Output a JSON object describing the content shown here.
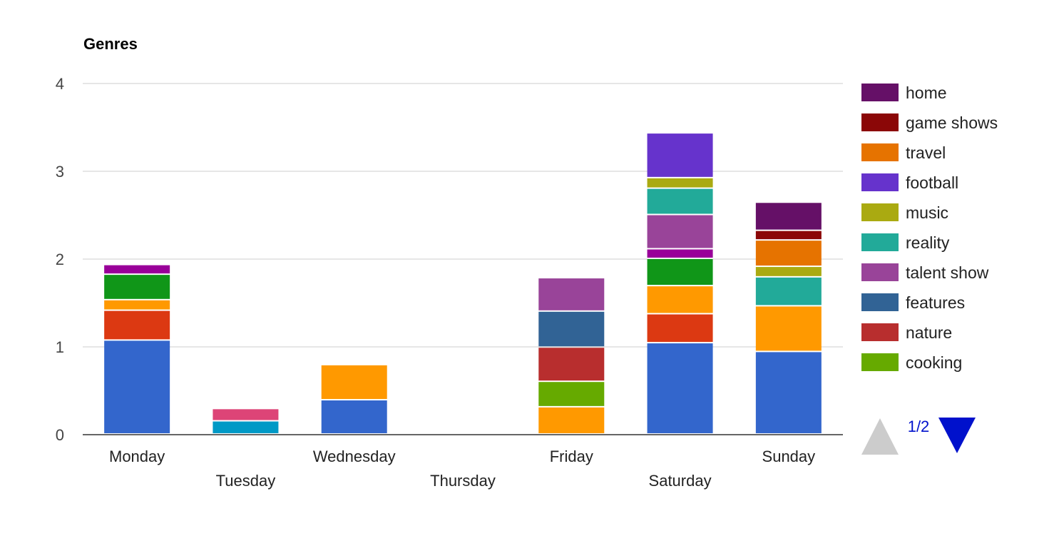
{
  "chart_data": {
    "type": "bar",
    "stacked": true,
    "title": "Genres",
    "categories": [
      "Monday",
      "Tuesday",
      "Wednesday",
      "Thursday",
      "Friday",
      "Saturday",
      "Sunday"
    ],
    "ylim": [
      0,
      4
    ],
    "yticks": [
      0,
      1,
      2,
      3,
      4
    ],
    "grid": true,
    "legend_position": "right",
    "series": [
      {
        "name": "",
        "color": "#3366cc",
        "values": [
          1.07,
          0,
          0.39,
          0,
          0,
          1.04,
          0.94
        ]
      },
      {
        "name": "",
        "color": "#dc3912",
        "values": [
          0.34,
          0,
          0,
          0,
          0,
          0.33,
          0
        ]
      },
      {
        "name": "",
        "color": "#ff9900",
        "values": [
          0.12,
          0,
          0.4,
          0,
          0.31,
          0.32,
          0.52
        ]
      },
      {
        "name": "",
        "color": "#109618",
        "values": [
          0.29,
          0,
          0,
          0,
          0,
          0.31,
          0
        ]
      },
      {
        "name": "",
        "color": "#990099",
        "values": [
          0.11,
          0,
          0,
          0,
          0,
          0.11,
          0
        ]
      },
      {
        "name": "",
        "color": "#0099c6",
        "values": [
          0,
          0.15,
          0,
          0,
          0,
          0,
          0
        ]
      },
      {
        "name": "",
        "color": "#dd4477",
        "values": [
          0,
          0.14,
          0,
          0,
          0,
          0,
          0
        ]
      },
      {
        "name": "cooking",
        "color": "#66aa00",
        "values": [
          0,
          0,
          0,
          0,
          0.29,
          0,
          0
        ]
      },
      {
        "name": "nature",
        "color": "#b82e2e",
        "values": [
          0,
          0,
          0,
          0,
          0.39,
          0,
          0
        ]
      },
      {
        "name": "features",
        "color": "#316395",
        "values": [
          0,
          0,
          0,
          0,
          0.41,
          0,
          0
        ]
      },
      {
        "name": "talent show",
        "color": "#994499",
        "values": [
          0,
          0,
          0,
          0,
          0.38,
          0.39,
          0
        ]
      },
      {
        "name": "reality",
        "color": "#22aa99",
        "values": [
          0,
          0,
          0,
          0,
          0,
          0.3,
          0.33
        ]
      },
      {
        "name": "music",
        "color": "#aaaa11",
        "values": [
          0,
          0,
          0,
          0,
          0,
          0.12,
          0.12
        ]
      },
      {
        "name": "football",
        "color": "#6633cc",
        "values": [
          0,
          0,
          0,
          0,
          0,
          0.51,
          0
        ]
      },
      {
        "name": "travel",
        "color": "#e67300",
        "values": [
          0,
          0,
          0,
          0,
          0,
          0,
          0.3
        ]
      },
      {
        "name": "game shows",
        "color": "#8b0707",
        "values": [
          0,
          0,
          0,
          0,
          0,
          0,
          0.11
        ]
      },
      {
        "name": "home",
        "color": "#651067",
        "values": [
          0,
          0,
          0,
          0,
          0,
          0,
          0.32
        ]
      }
    ],
    "legend": {
      "entries": [
        "home",
        "game shows",
        "travel",
        "football",
        "music",
        "reality",
        "talent show",
        "features",
        "nature",
        "cooking"
      ],
      "page_label": "1/2",
      "prev_color": "#cccccc",
      "next_color": "#0011cc"
    }
  }
}
